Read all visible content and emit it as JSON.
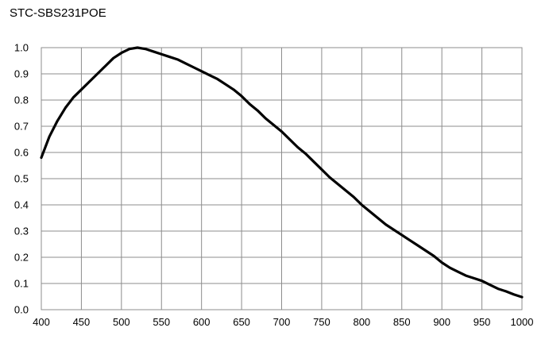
{
  "chart_data": {
    "type": "line",
    "title": "STC-SBS231POE",
    "xlabel": "",
    "ylabel": "",
    "xlim": [
      400,
      1000
    ],
    "ylim": [
      0,
      1.0
    ],
    "x_ticks": [
      "400",
      "450",
      "500",
      "550",
      "600",
      "650",
      "700",
      "750",
      "800",
      "850",
      "900",
      "950",
      "1000"
    ],
    "y_ticks": [
      "0.0",
      "0.1",
      "0.2",
      "0.3",
      "0.4",
      "0.5",
      "0.6",
      "0.7",
      "0.8",
      "0.9",
      "1.0"
    ],
    "grid": true,
    "series": [
      {
        "color": "#000000",
        "x": [
          400,
          410,
          420,
          430,
          440,
          450,
          460,
          470,
          480,
          490,
          500,
          510,
          520,
          530,
          540,
          550,
          560,
          570,
          580,
          590,
          600,
          610,
          620,
          630,
          640,
          650,
          660,
          670,
          680,
          690,
          700,
          710,
          720,
          730,
          740,
          750,
          760,
          770,
          780,
          790,
          800,
          810,
          820,
          830,
          840,
          850,
          860,
          870,
          880,
          890,
          900,
          910,
          920,
          930,
          940,
          950,
          960,
          970,
          980,
          990,
          1000
        ],
        "y": [
          0.58,
          0.66,
          0.72,
          0.77,
          0.81,
          0.84,
          0.87,
          0.9,
          0.93,
          0.96,
          0.98,
          0.995,
          1.0,
          0.995,
          0.985,
          0.975,
          0.965,
          0.955,
          0.94,
          0.925,
          0.91,
          0.895,
          0.88,
          0.86,
          0.84,
          0.815,
          0.785,
          0.76,
          0.73,
          0.705,
          0.68,
          0.65,
          0.62,
          0.595,
          0.565,
          0.535,
          0.505,
          0.48,
          0.455,
          0.43,
          0.4,
          0.375,
          0.35,
          0.325,
          0.305,
          0.285,
          0.265,
          0.245,
          0.225,
          0.205,
          0.18,
          0.16,
          0.145,
          0.13,
          0.12,
          0.11,
          0.095,
          0.08,
          0.07,
          0.058,
          0.048
        ]
      }
    ]
  }
}
